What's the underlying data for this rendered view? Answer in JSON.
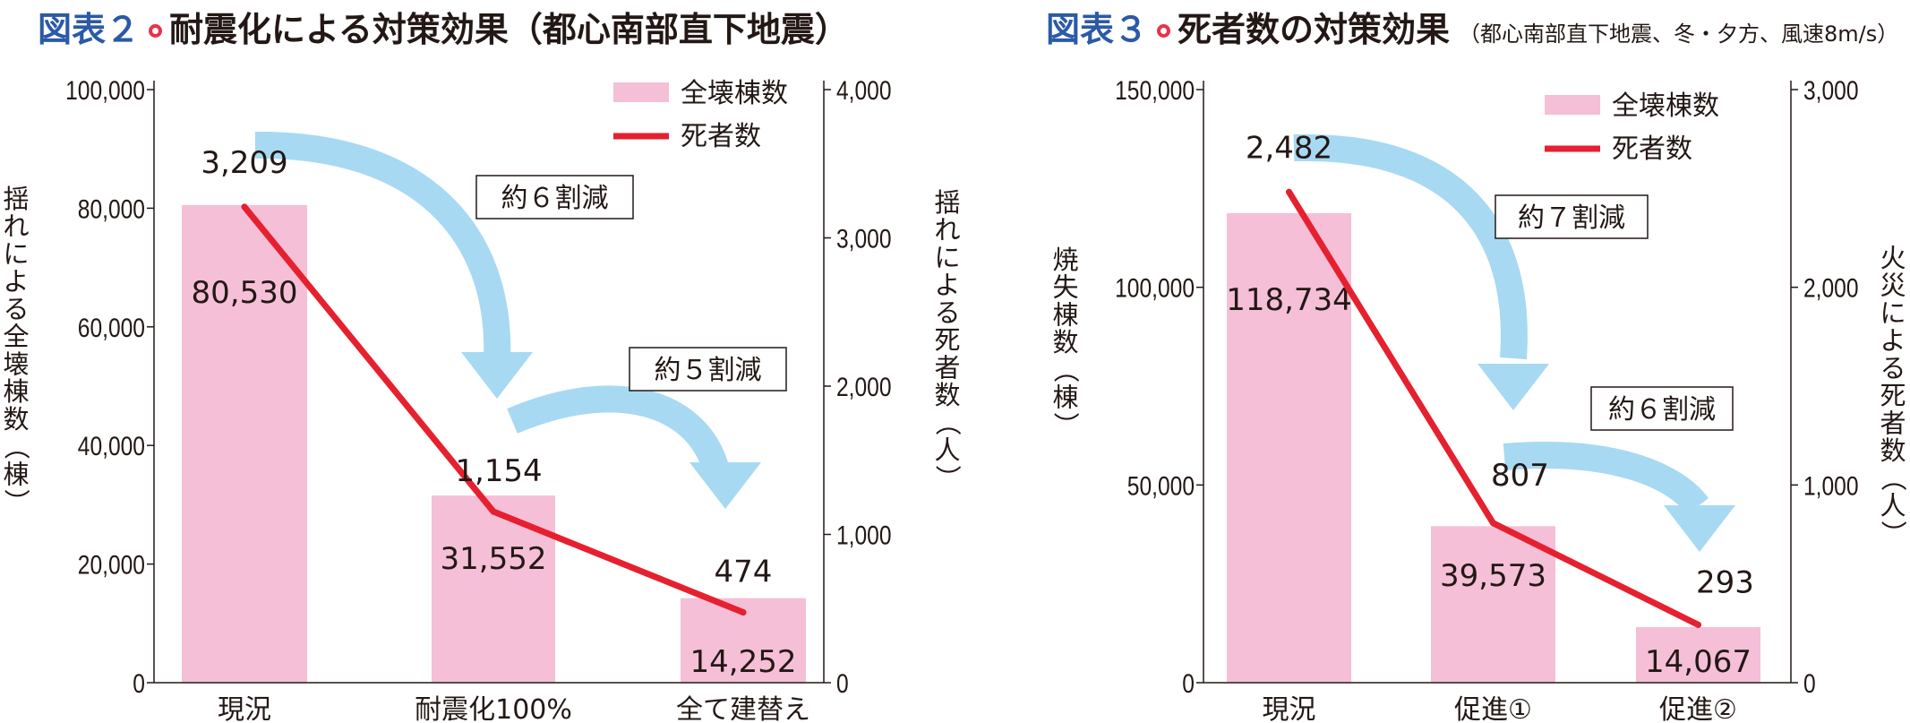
{
  "chart_data": [
    {
      "type": "bar+line",
      "figure_label": "図表２",
      "title": "耐震化による対策効果（都心南部直下地震）",
      "subtitle": "",
      "categories": [
        "現況",
        "耐震化100%",
        "全て建替え"
      ],
      "series": [
        {
          "name": "全壊棟数",
          "type": "bar",
          "axis": "left",
          "values": [
            80530,
            31552,
            14252
          ],
          "labels": [
            "80,530",
            "31,552",
            "14,252"
          ],
          "color": "#f5bfd8"
        },
        {
          "name": "死者数",
          "type": "line",
          "axis": "right",
          "values": [
            3209,
            1154,
            474
          ],
          "labels": [
            "3,209",
            "1,154",
            "474"
          ],
          "color": "#e6202f"
        }
      ],
      "ylabel_left": "揺れによる全壊棟数（棟）",
      "ylabel_right": "揺れによる死者数（人）",
      "ylim_left": [
        0,
        100000
      ],
      "ylim_right": [
        0,
        4000
      ],
      "yticks_left": [
        "0",
        "20,000",
        "40,000",
        "60,000",
        "80,000",
        "100,000"
      ],
      "yticks_right": [
        "0",
        "1,000",
        "2,000",
        "3,000",
        "4,000"
      ],
      "legend": "top-right",
      "annotations": [
        "約６割減",
        "約５割減"
      ]
    },
    {
      "type": "bar+line",
      "figure_label": "図表３",
      "title": "死者数の対策効果",
      "subtitle": "（都心南部直下地震、冬・夕方、風速8m/s）",
      "categories": [
        "現況",
        "促進①",
        "促進②"
      ],
      "series": [
        {
          "name": "全壊棟数",
          "type": "bar",
          "axis": "left",
          "values": [
            118734,
            39573,
            14067
          ],
          "labels": [
            "118,734",
            "39,573",
            "14,067"
          ],
          "color": "#f5bfd8"
        },
        {
          "name": "死者数",
          "type": "line",
          "axis": "right",
          "values": [
            2482,
            807,
            293
          ],
          "labels": [
            "2,482",
            "807",
            "293"
          ],
          "color": "#e6202f"
        }
      ],
      "ylabel_left": "焼失棟数（棟）",
      "ylabel_right": "火災による死者数（人）",
      "ylim_left": [
        0,
        150000
      ],
      "ylim_right": [
        0,
        3000
      ],
      "yticks_left": [
        "0",
        "50,000",
        "100,000",
        "150,000"
      ],
      "yticks_right": [
        "0",
        "1,000",
        "2,000",
        "3,000"
      ],
      "legend": "top-right",
      "annotations": [
        "約７割減",
        "約６割減"
      ]
    }
  ]
}
